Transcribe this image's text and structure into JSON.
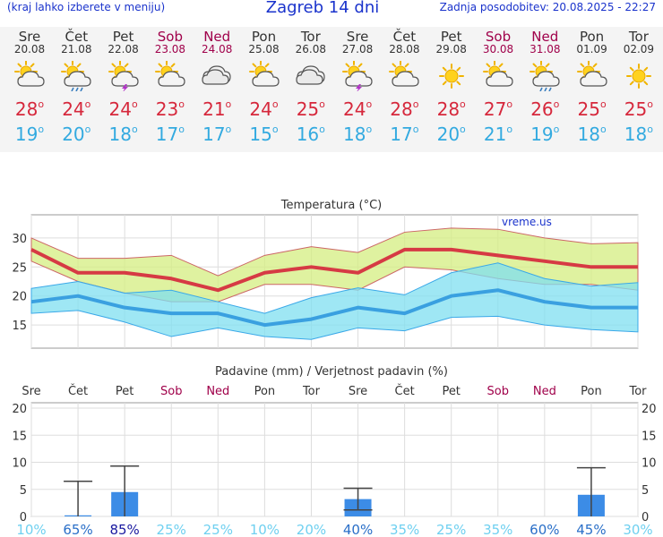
{
  "header": {
    "left": "(kraj lahko izberete v meniju)",
    "title": "Zagreb 14 dni",
    "right": "Zadnja posodobitev: 20.08.2025 - 22:27"
  },
  "degree_symbol": "o",
  "days": [
    {
      "name": "Sre",
      "date": "20.08",
      "weekend": false,
      "icon": "sun-cloud-icon",
      "max": "28",
      "min": "19"
    },
    {
      "name": "Čet",
      "date": "21.08",
      "weekend": false,
      "icon": "sun-rain-icon",
      "max": "24",
      "min": "20"
    },
    {
      "name": "Pet",
      "date": "22.08",
      "weekend": false,
      "icon": "sun-thunder-icon",
      "max": "24",
      "min": "18"
    },
    {
      "name": "Sob",
      "date": "23.08",
      "weekend": true,
      "icon": "sun-cloud-icon",
      "max": "23",
      "min": "17"
    },
    {
      "name": "Ned",
      "date": "24.08",
      "weekend": true,
      "icon": "cloud-icon",
      "max": "21",
      "min": "17"
    },
    {
      "name": "Pon",
      "date": "25.08",
      "weekend": false,
      "icon": "sun-cloud-icon",
      "max": "24",
      "min": "15"
    },
    {
      "name": "Tor",
      "date": "26.08",
      "weekend": false,
      "icon": "cloud-icon",
      "max": "25",
      "min": "16"
    },
    {
      "name": "Sre",
      "date": "27.08",
      "weekend": false,
      "icon": "sun-thunder-icon",
      "max": "24",
      "min": "18"
    },
    {
      "name": "Čet",
      "date": "28.08",
      "weekend": false,
      "icon": "sun-cloud-icon",
      "max": "28",
      "min": "17"
    },
    {
      "name": "Pet",
      "date": "29.08",
      "weekend": false,
      "icon": "sun-icon",
      "max": "28",
      "min": "20"
    },
    {
      "name": "Sob",
      "date": "30.08",
      "weekend": true,
      "icon": "sun-cloud-icon",
      "max": "27",
      "min": "21"
    },
    {
      "name": "Ned",
      "date": "31.08",
      "weekend": true,
      "icon": "sun-rain-icon",
      "max": "26",
      "min": "19"
    },
    {
      "name": "Pon",
      "date": "01.09",
      "weekend": false,
      "icon": "sun-cloud-icon",
      "max": "25",
      "min": "18"
    },
    {
      "name": "Tor",
      "date": "02.09",
      "weekend": false,
      "icon": "sun-icon",
      "max": "25",
      "min": "18"
    }
  ],
  "chart_data": [
    {
      "type": "line",
      "title": "Temperatura (°C)",
      "watermark": "vreme.us",
      "ylim": [
        11,
        34
      ],
      "yticks": [
        15,
        20,
        25,
        30
      ],
      "grid": true,
      "series": [
        {
          "name": "max",
          "values": [
            28,
            24,
            24,
            23,
            21,
            24,
            25,
            24,
            28,
            28,
            27,
            26,
            25,
            25
          ],
          "color": "#d63a44",
          "band_high": [
            30,
            26.5,
            26.5,
            27,
            23.5,
            27,
            28.5,
            27.5,
            31,
            31.7,
            31.5,
            30,
            29,
            29.2
          ],
          "band_low": [
            26,
            22.5,
            20.5,
            19,
            19,
            22,
            22,
            21,
            25,
            24.5,
            23,
            22,
            22,
            21
          ]
        },
        {
          "name": "min",
          "values": [
            19,
            20,
            18,
            17,
            17,
            15,
            16,
            18,
            17,
            20,
            21,
            19,
            18,
            18
          ],
          "color": "#3aa0e0",
          "band_high": [
            21.3,
            22.5,
            20.5,
            21,
            19,
            17,
            19.7,
            21.4,
            20.2,
            24,
            25.7,
            23,
            21.7,
            22.3
          ],
          "band_low": [
            17,
            17.5,
            15.5,
            13,
            14.5,
            13,
            12.5,
            14.5,
            14,
            16.3,
            16.5,
            15,
            14.2,
            13.8
          ]
        }
      ]
    },
    {
      "type": "bar",
      "title": "Padavine (mm) / Verjetnost padavin (%)",
      "ylim": [
        0,
        21
      ],
      "yticks": [
        0,
        5,
        10,
        15,
        20
      ],
      "grid": true,
      "values": [
        0,
        0.2,
        4.5,
        0,
        0,
        0,
        0,
        3.2,
        0,
        0,
        0,
        0,
        4,
        0
      ],
      "err_high": [
        0,
        6.5,
        9.3,
        0,
        0,
        0,
        0,
        5.2,
        0,
        0,
        0,
        0,
        9,
        0
      ],
      "err_low": [
        0,
        0,
        0,
        0,
        0,
        0,
        0,
        1.2,
        0,
        0,
        0,
        0,
        0,
        0
      ],
      "probabilities": [
        "10%",
        "65%",
        "85%",
        "25%",
        "25%",
        "10%",
        "20%",
        "40%",
        "35%",
        "25%",
        "35%",
        "60%",
        "45%",
        "30%"
      ]
    }
  ]
}
